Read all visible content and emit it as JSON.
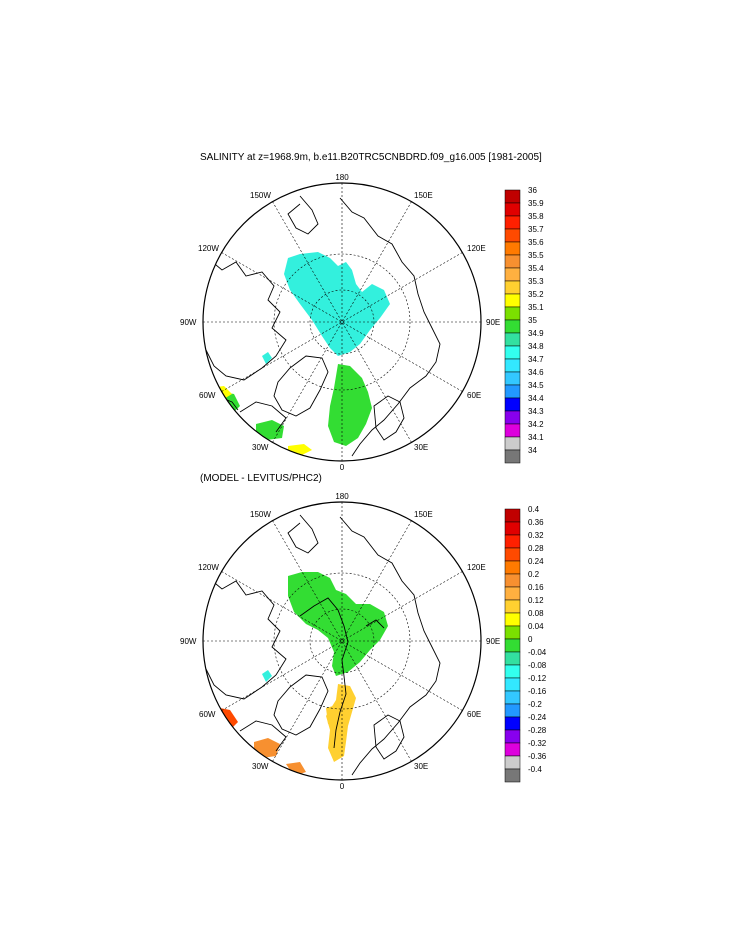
{
  "panels": [
    {
      "title": "SALINITY at z=1968.9m, b.e11.B20TRC5CNBDRD.f09_g16.005 [1981-2005]",
      "lon_labels": {
        "n": "180",
        "nne": "150E",
        "nnw": "150W",
        "ene": "120E",
        "wnw": "120W",
        "e": "90E",
        "w": "90W",
        "ese": "60E",
        "wsw": "60W",
        "sse": "30E",
        "ssw": "30W",
        "s": "0"
      },
      "colorbar": {
        "labels": [
          "36",
          "35.9",
          "35.8",
          "35.7",
          "35.6",
          "35.5",
          "35.4",
          "35.3",
          "35.2",
          "35.1",
          "35",
          "34.9",
          "34.8",
          "34.7",
          "34.6",
          "34.5",
          "34.4",
          "34.3",
          "34.2",
          "34.1",
          "34"
        ],
        "colors": [
          "#c00000",
          "#e00000",
          "#ff2000",
          "#ff4a00",
          "#ff7a00",
          "#f79030",
          "#ffb040",
          "#ffd030",
          "#ffff00",
          "#7be000",
          "#33dd33",
          "#33e0a0",
          "#33ffee",
          "#33e8ff",
          "#33c8ff",
          "#2299ff",
          "#0000ff",
          "#8800ee",
          "#dd00dd",
          "#cccccc",
          "#777777"
        ]
      }
    },
    {
      "title": "(MODEL - LEVITUS/PHC2)",
      "lon_labels": {
        "n": "180",
        "nne": "150E",
        "nnw": "150W",
        "ene": "120E",
        "wnw": "120W",
        "e": "90E",
        "w": "90W",
        "ese": "60E",
        "wsw": "60W",
        "sse": "30E",
        "ssw": "30W",
        "s": "0"
      },
      "colorbar": {
        "labels": [
          "0.4",
          "0.36",
          "0.32",
          "0.28",
          "0.24",
          "0.2",
          "0.16",
          "0.12",
          "0.08",
          "0.04",
          "0",
          "-0.04",
          "-0.08",
          "-0.12",
          "-0.16",
          "-0.2",
          "-0.24",
          "-0.28",
          "-0.32",
          "-0.36",
          "-0.4"
        ],
        "colors": [
          "#c00000",
          "#e00000",
          "#ff2000",
          "#ff4a00",
          "#ff7a00",
          "#f79030",
          "#ffb040",
          "#ffd030",
          "#ffff00",
          "#7be000",
          "#33dd33",
          "#33e0a0",
          "#33ffee",
          "#33e8ff",
          "#33c8ff",
          "#2299ff",
          "#0000ff",
          "#8800ee",
          "#dd00dd",
          "#cccccc",
          "#777777"
        ]
      }
    }
  ],
  "colors": {
    "top_main_field": "#33f0dd",
    "top_green_field": "#33dd33",
    "top_yellow_field": "#ffff00",
    "bot_green_field": "#33dd33",
    "bot_yellow_field": "#ffd030",
    "bot_orange_field": "#f79030",
    "bot_red_field": "#ff4a00"
  }
}
